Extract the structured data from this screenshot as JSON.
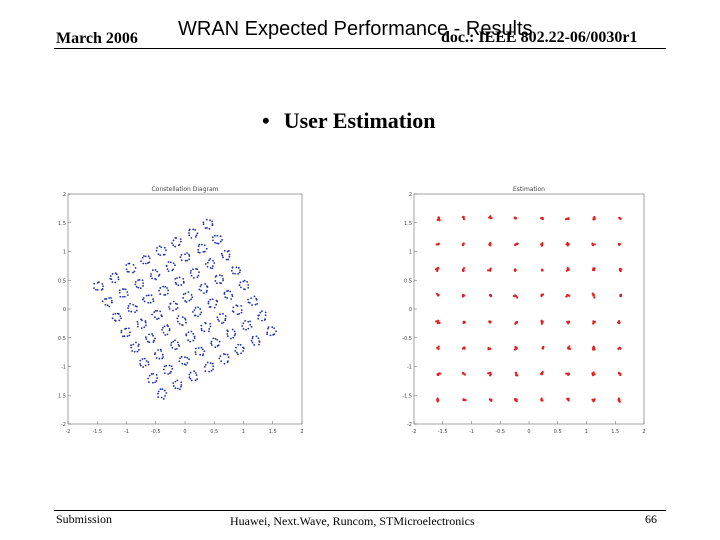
{
  "header": {
    "date": "March 2006",
    "title": "WRAN Expected Performance - Results",
    "doc_id": "doc.: IEEE 802.22-06/0030r1"
  },
  "body": {
    "bullet": "•",
    "heading": "User Estimation"
  },
  "footer": {
    "left": "Submission",
    "center": "Huawei, Next.Wave, Runcom, STMicroelectronics",
    "page": "66"
  },
  "chart_data": [
    {
      "type": "scatter",
      "title": "Constellation Diagram",
      "xlim": [
        -2,
        2
      ],
      "ylim": [
        -2,
        2
      ],
      "xticks": [
        "-2",
        "-1.5",
        "-1",
        "-0.5",
        "0",
        "0.5",
        "1",
        "1.5",
        "2"
      ],
      "yticks": [
        "2",
        "1.5",
        "1",
        "0.5",
        "0",
        "-0.5",
        "-1",
        "-1.5",
        "-2"
      ],
      "grid": false,
      "marker_color": "#1f2ea8",
      "constellation": "64-QAM, rotated ~30°, noisy",
      "levels": [
        -1.08,
        -0.77,
        -0.46,
        -0.15,
        0.15,
        0.46,
        0.77,
        1.08
      ],
      "rotation_deg": 30
    },
    {
      "type": "scatter",
      "title": "Estimation",
      "xlim": [
        -2,
        2
      ],
      "ylim": [
        -2,
        2
      ],
      "xticks": [
        "-2",
        "-1.5",
        "-1",
        "-0.5",
        "0",
        "0.5",
        "1",
        "1.5",
        "2"
      ],
      "yticks": [
        "2",
        "1.5",
        "1",
        "0.5",
        "0",
        "-0.5",
        "-1",
        "-1.5",
        "-2"
      ],
      "grid": false,
      "marker_color": "#e02020",
      "constellation": "64-QAM, derotated",
      "levels": [
        -1.58,
        -1.13,
        -0.68,
        -0.23,
        0.23,
        0.68,
        1.13,
        1.58
      ],
      "rotation_deg": 0
    }
  ]
}
